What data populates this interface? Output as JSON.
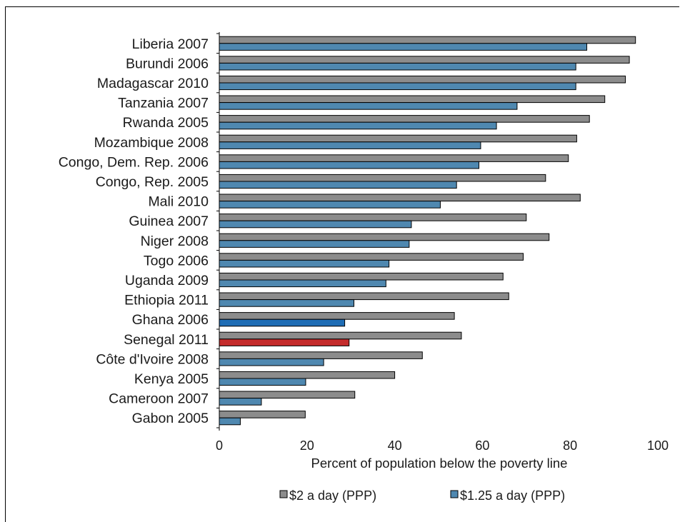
{
  "chart_data": {
    "type": "bar",
    "orientation": "horizontal",
    "categories": [
      "Liberia 2007",
      "Burundi 2006",
      "Madagascar 2010",
      "Tanzania 2007",
      "Rwanda 2005",
      "Mozambique 2008",
      "Congo, Dem. Rep. 2006",
      "Congo, Rep. 2005",
      "Mali 2010",
      "Guinea 2007",
      "Niger 2008",
      "Togo 2006",
      "Uganda 2009",
      "Ethiopia 2011",
      "Ghana 2006",
      "Senegal 2011",
      "Côte d'Ivoire 2008",
      "Kenya 2005",
      "Cameroon 2007",
      "Gabon 2005"
    ],
    "series": [
      {
        "name": "$2 a day (PPP)",
        "color": "#8c8c8c",
        "values": [
          94.9,
          93.5,
          92.6,
          87.9,
          84.4,
          81.5,
          79.6,
          74.4,
          82.3,
          70.0,
          75.2,
          69.3,
          64.7,
          66.0,
          53.6,
          55.2,
          46.3,
          40.0,
          30.9,
          19.6
        ]
      },
      {
        "name": "$1.25 a day (PPP)",
        "color": "#4f88b0",
        "values": [
          83.8,
          81.3,
          81.3,
          67.9,
          63.2,
          59.6,
          59.2,
          54.1,
          50.4,
          43.8,
          43.3,
          38.7,
          38.0,
          30.7,
          28.6,
          29.6,
          23.8,
          19.7,
          9.6,
          4.8
        ]
      }
    ],
    "highlights": [
      {
        "category": "Ghana 2006",
        "series": "$1.25 a day (PPP)",
        "color": "#1f6db5"
      },
      {
        "category": "Senegal 2011",
        "series": "$1.25 a day (PPP)",
        "color": "#c42b2b"
      }
    ],
    "xlabel": "Percent of population below the poverty line",
    "ylabel": "",
    "xlim": [
      0,
      100
    ],
    "xticks": [
      0,
      20,
      40,
      60,
      80,
      100
    ],
    "legend_position": "bottom",
    "grid": false
  }
}
